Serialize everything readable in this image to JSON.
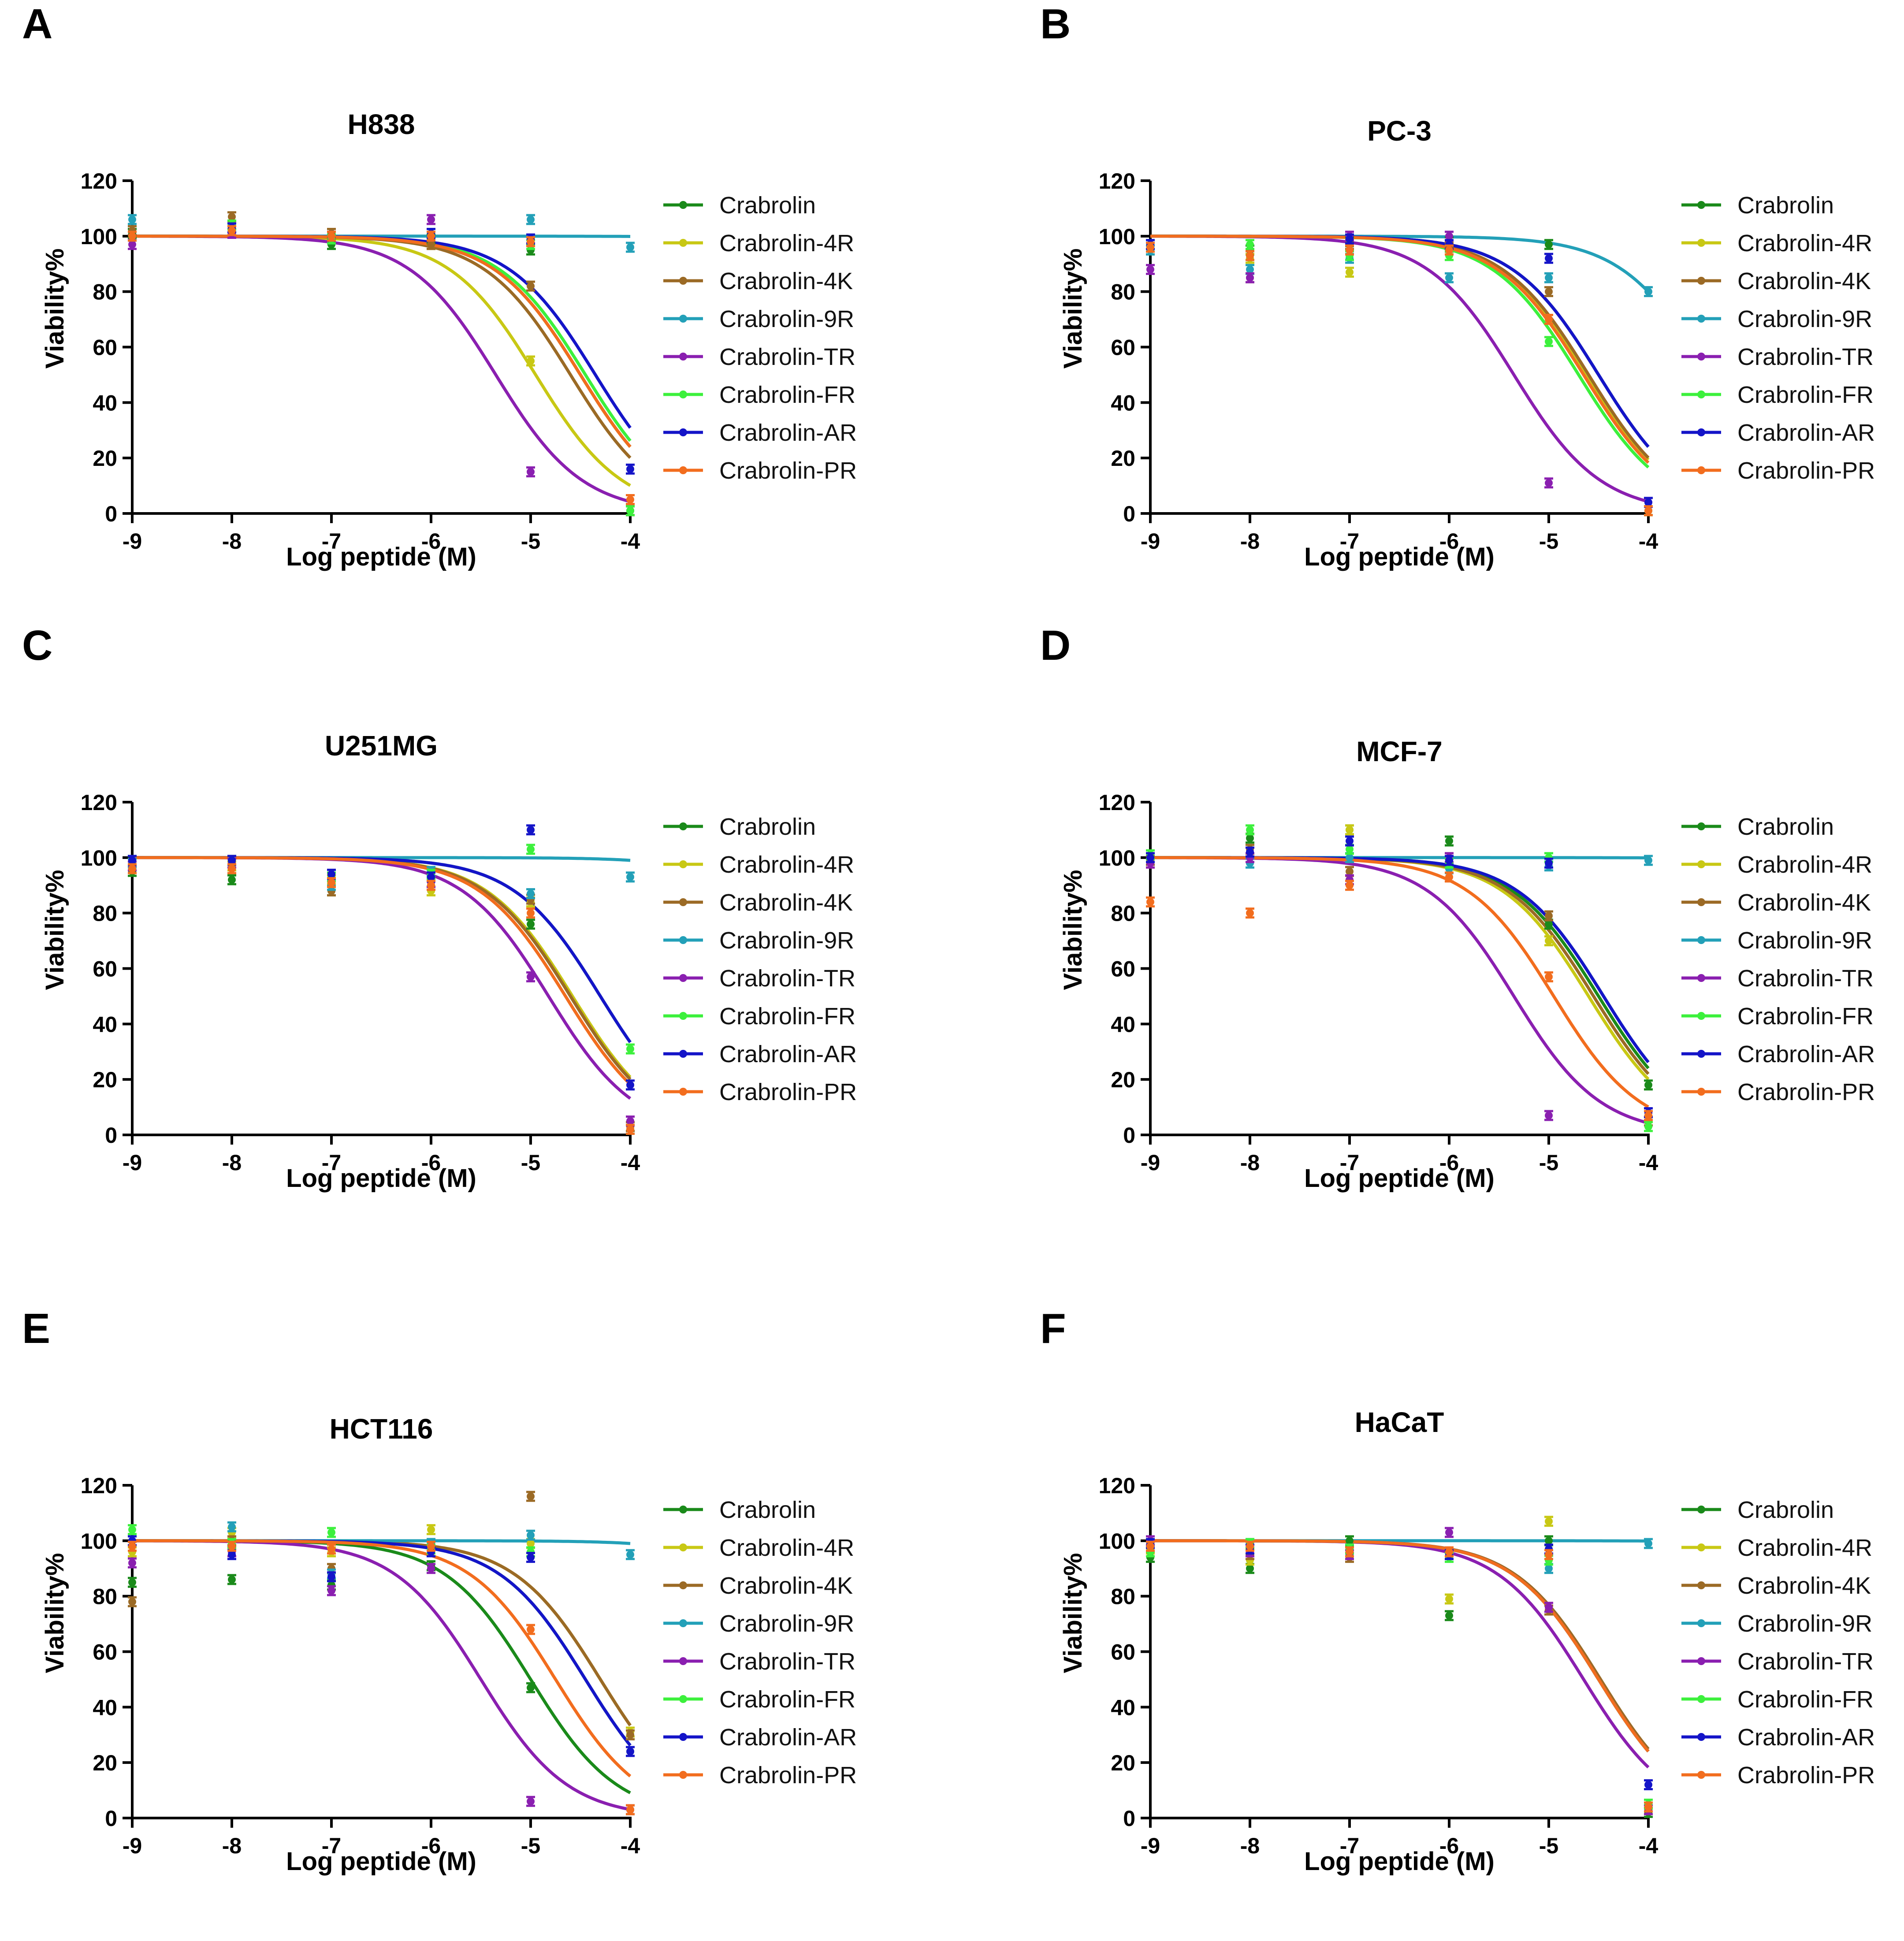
{
  "colors": {
    "Crabrolin": "#1a8a1a",
    "Crabrolin-4R": "#c8c814",
    "Crabrolin-4K": "#9b6a25",
    "Crabrolin-9R": "#23a0b8",
    "Crabrolin-TR": "#8a1fb0",
    "Crabrolin-FR": "#3cf03c",
    "Crabrolin-AR": "#1414c8",
    "Crabrolin-PR": "#f26d1e"
  },
  "chart_data": [
    {
      "panel_label": "A",
      "type": "line",
      "title": "H838",
      "xlabel": "Log peptide (M)",
      "ylabel": "Viability%",
      "xlim": [
        -9,
        -4
      ],
      "ylim": [
        0,
        120
      ],
      "x_ticks": [
        "-9",
        "-8",
        "-7",
        "-6",
        "-5",
        "-4"
      ],
      "y_ticks": [
        "0",
        "20",
        "40",
        "60",
        "80",
        "100",
        "120"
      ],
      "x": [
        -9,
        -8,
        -7,
        -6,
        -5,
        -4
      ],
      "series": [
        {
          "name": "Crabrolin",
          "values": [
            101,
            102,
            97,
            99,
            95,
            1
          ],
          "logIC50": -4.5
        },
        {
          "name": "Crabrolin-4R",
          "values": [
            100,
            104,
            100,
            97,
            55,
            1
          ],
          "logIC50": -4.95
        },
        {
          "name": "Crabrolin-4K",
          "values": [
            102,
            107,
            101,
            97,
            82,
            1
          ],
          "logIC50": -4.6
        },
        {
          "name": "Crabrolin-9R",
          "values": [
            106,
            103,
            99,
            100,
            106,
            96
          ],
          "logIC50": -1.0
        },
        {
          "name": "Crabrolin-TR",
          "values": [
            97,
            101,
            100,
            106,
            15,
            1
          ],
          "logIC50": -5.35
        },
        {
          "name": "Crabrolin-FR",
          "values": [
            100,
            104,
            99,
            101,
            97,
            1
          ],
          "logIC50": -4.45
        },
        {
          "name": "Crabrolin-AR",
          "values": [
            100,
            103,
            100,
            101,
            99,
            16
          ],
          "logIC50": -4.35
        },
        {
          "name": "Crabrolin-PR",
          "values": [
            100,
            102,
            100,
            100,
            98,
            5
          ],
          "logIC50": -4.5
        }
      ]
    },
    {
      "panel_label": "B",
      "type": "line",
      "title": "PC-3",
      "xlabel": "Log peptide (M)",
      "ylabel": "Viability%",
      "xlim": [
        -9,
        -4
      ],
      "ylim": [
        0,
        120
      ],
      "x_ticks": [
        "-9",
        "-8",
        "-7",
        "-6",
        "-5",
        "-4"
      ],
      "y_ticks": [
        "0",
        "20",
        "40",
        "60",
        "80",
        "100",
        "120"
      ],
      "x": [
        -9,
        -8,
        -7,
        -6,
        -5,
        -4
      ],
      "series": [
        {
          "name": "Crabrolin",
          "values": [
            97,
            95,
            98,
            98,
            97,
            1
          ],
          "logIC50": -4.5
        },
        {
          "name": "Crabrolin-4R",
          "values": [
            95,
            92,
            87,
            95,
            70,
            1
          ],
          "logIC50": -4.62
        },
        {
          "name": "Crabrolin-4K",
          "values": [
            96,
            85,
            97,
            96,
            80,
            1
          ],
          "logIC50": -4.6
        },
        {
          "name": "Crabrolin-9R",
          "values": [
            95,
            88,
            92,
            85,
            85,
            80
          ],
          "logIC50": -3.4
        },
        {
          "name": "Crabrolin-TR",
          "values": [
            88,
            85,
            100,
            100,
            11,
            4
          ],
          "logIC50": -5.35
        },
        {
          "name": "Crabrolin-FR",
          "values": [
            96,
            97,
            93,
            93,
            62,
            1
          ],
          "logIC50": -4.7
        },
        {
          "name": "Crabrolin-AR",
          "values": [
            97,
            93,
            99,
            97,
            92,
            4
          ],
          "logIC50": -4.5
        },
        {
          "name": "Crabrolin-PR",
          "values": [
            96,
            93,
            95,
            95,
            70,
            1
          ],
          "logIC50": -4.65
        }
      ]
    },
    {
      "panel_label": "C",
      "type": "line",
      "title": "U251MG",
      "xlabel": "Log peptide (M)",
      "ylabel": "Viability%",
      "xlim": [
        -9,
        -4
      ],
      "ylim": [
        0,
        120
      ],
      "x_ticks": [
        "-9",
        "-8",
        "-7",
        "-6",
        "-5",
        "-4"
      ],
      "y_ticks": [
        "0",
        "20",
        "40",
        "60",
        "80",
        "100",
        "120"
      ],
      "x": [
        -9,
        -8,
        -7,
        -6,
        -5,
        -4
      ],
      "series": [
        {
          "name": "Crabrolin",
          "values": [
            95,
            92,
            88,
            90,
            76,
            2
          ],
          "logIC50": -4.6
        },
        {
          "name": "Crabrolin-4R",
          "values": [
            96,
            97,
            92,
            88,
            84,
            3
          ],
          "logIC50": -4.58
        },
        {
          "name": "Crabrolin-4K",
          "values": [
            97,
            96,
            88,
            93,
            85,
            3
          ],
          "logIC50": -4.6
        },
        {
          "name": "Crabrolin-9R",
          "values": [
            98,
            99,
            90,
            95,
            87,
            93
          ],
          "logIC50": -2.0
        },
        {
          "name": "Crabrolin-TR",
          "values": [
            97,
            98,
            94,
            91,
            57,
            5
          ],
          "logIC50": -4.82
        },
        {
          "name": "Crabrolin-FR",
          "values": [
            99,
            99,
            93,
            94,
            103,
            31
          ],
          "logIC50": -4.3
        },
        {
          "name": "Crabrolin-AR",
          "values": [
            99,
            99,
            94,
            93,
            110,
            18
          ],
          "logIC50": -4.3
        },
        {
          "name": "Crabrolin-PR",
          "values": [
            96,
            96,
            91,
            90,
            80,
            2
          ],
          "logIC50": -4.65
        }
      ]
    },
    {
      "panel_label": "D",
      "type": "line",
      "title": "MCF-7",
      "xlabel": "Log peptide (M)",
      "ylabel": "Viability%",
      "xlim": [
        -9,
        -4
      ],
      "ylim": [
        0,
        120
      ],
      "x_ticks": [
        "-9",
        "-8",
        "-7",
        "-6",
        "-5",
        "-4"
      ],
      "y_ticks": [
        "0",
        "20",
        "40",
        "60",
        "80",
        "100",
        "120"
      ],
      "x": [
        -9,
        -8,
        -7,
        -6,
        -5,
        -4
      ],
      "series": [
        {
          "name": "Crabrolin",
          "values": [
            100,
            107,
            110,
            106,
            76,
            18
          ],
          "logIC50": -4.5
        },
        {
          "name": "Crabrolin-4R",
          "values": [
            98,
            100,
            110,
            100,
            70,
            5
          ],
          "logIC50": -4.6
        },
        {
          "name": "Crabrolin-4K",
          "values": [
            99,
            103,
            95,
            98,
            79,
            5
          ],
          "logIC50": -4.55
        },
        {
          "name": "Crabrolin-9R",
          "values": [
            101,
            98,
            100,
            96,
            97,
            99
          ],
          "logIC50": -1.0
        },
        {
          "name": "Crabrolin-TR",
          "values": [
            98,
            100,
            92,
            100,
            7,
            8
          ],
          "logIC50": -5.35
        },
        {
          "name": "Crabrolin-FR",
          "values": [
            101,
            110,
            103,
            98,
            100,
            3
          ],
          "logIC50": -4.45
        },
        {
          "name": "Crabrolin-AR",
          "values": [
            100,
            102,
            106,
            99,
            98,
            8
          ],
          "logIC50": -4.45
        },
        {
          "name": "Crabrolin-PR",
          "values": [
            84,
            80,
            90,
            93,
            57,
            7
          ],
          "logIC50": -4.95
        }
      ]
    },
    {
      "panel_label": "E",
      "type": "line",
      "title": "HCT116",
      "xlabel": "Log peptide (M)",
      "ylabel": "Viability%",
      "xlim": [
        -9,
        -4
      ],
      "ylim": [
        0,
        120
      ],
      "x_ticks": [
        "-9",
        "-8",
        "-7",
        "-6",
        "-5",
        "-4"
      ],
      "y_ticks": [
        "0",
        "20",
        "40",
        "60",
        "80",
        "100",
        "120"
      ],
      "x": [
        -9,
        -8,
        -7,
        -6,
        -5,
        -4
      ],
      "series": [
        {
          "name": "Crabrolin",
          "values": [
            85,
            86,
            84,
            91,
            47,
            3
          ],
          "logIC50": -5.0
        },
        {
          "name": "Crabrolin-4R",
          "values": [
            96,
            103,
            96,
            104,
            99,
            31
          ],
          "logIC50": -4.3
        },
        {
          "name": "Crabrolin-4K",
          "values": [
            78,
            100,
            90,
            99,
            116,
            30
          ],
          "logIC50": -4.3
        },
        {
          "name": "Crabrolin-9R",
          "values": [
            100,
            105,
            88,
            99,
            102,
            95
          ],
          "logIC50": -2.0
        },
        {
          "name": "Crabrolin-TR",
          "values": [
            92,
            96,
            82,
            90,
            6,
            3
          ],
          "logIC50": -5.5
        },
        {
          "name": "Crabrolin-FR",
          "values": [
            104,
            99,
            103,
            97,
            96,
            24
          ],
          "logIC50": -4.45
        },
        {
          "name": "Crabrolin-AR",
          "values": [
            100,
            95,
            87,
            96,
            94,
            24
          ],
          "logIC50": -4.45
        },
        {
          "name": "Crabrolin-PR",
          "values": [
            98,
            98,
            97,
            98,
            68,
            3
          ],
          "logIC50": -4.75
        }
      ]
    },
    {
      "panel_label": "F",
      "type": "line",
      "title": "HaCaT",
      "xlabel": "Log peptide (M)",
      "ylabel": "Viability%",
      "xlim": [
        -9,
        -4
      ],
      "ylim": [
        0,
        120
      ],
      "x_ticks": [
        "-9",
        "-8",
        "-7",
        "-6",
        "-5",
        "-4"
      ],
      "y_ticks": [
        "0",
        "20",
        "40",
        "60",
        "80",
        "100",
        "120"
      ],
      "x": [
        -9,
        -8,
        -7,
        -6,
        -5,
        -4
      ],
      "series": [
        {
          "name": "Crabrolin",
          "values": [
            94,
            90,
            100,
            73,
            100,
            2
          ],
          "logIC50": -4.5
        },
        {
          "name": "Crabrolin-4R",
          "values": [
            97,
            93,
            95,
            79,
            107,
            3
          ],
          "logIC50": -4.5
        },
        {
          "name": "Crabrolin-4K",
          "values": [
            98,
            95,
            94,
            95,
            75,
            3
          ],
          "logIC50": -4.48
        },
        {
          "name": "Crabrolin-9R",
          "values": [
            99,
            99,
            97,
            95,
            90,
            99
          ],
          "logIC50": -1.0
        },
        {
          "name": "Crabrolin-TR",
          "values": [
            100,
            96,
            95,
            103,
            76,
            3
          ],
          "logIC50": -4.65
        },
        {
          "name": "Crabrolin-FR",
          "values": [
            96,
            99,
            97,
            94,
            93,
            5
          ],
          "logIC50": -4.5
        },
        {
          "name": "Crabrolin-AR",
          "values": [
            99,
            97,
            96,
            95,
            97,
            12
          ],
          "logIC50": -4.5
        },
        {
          "name": "Crabrolin-PR",
          "values": [
            98,
            98,
            96,
            96,
            95,
            4
          ],
          "logIC50": -4.5
        }
      ]
    }
  ]
}
